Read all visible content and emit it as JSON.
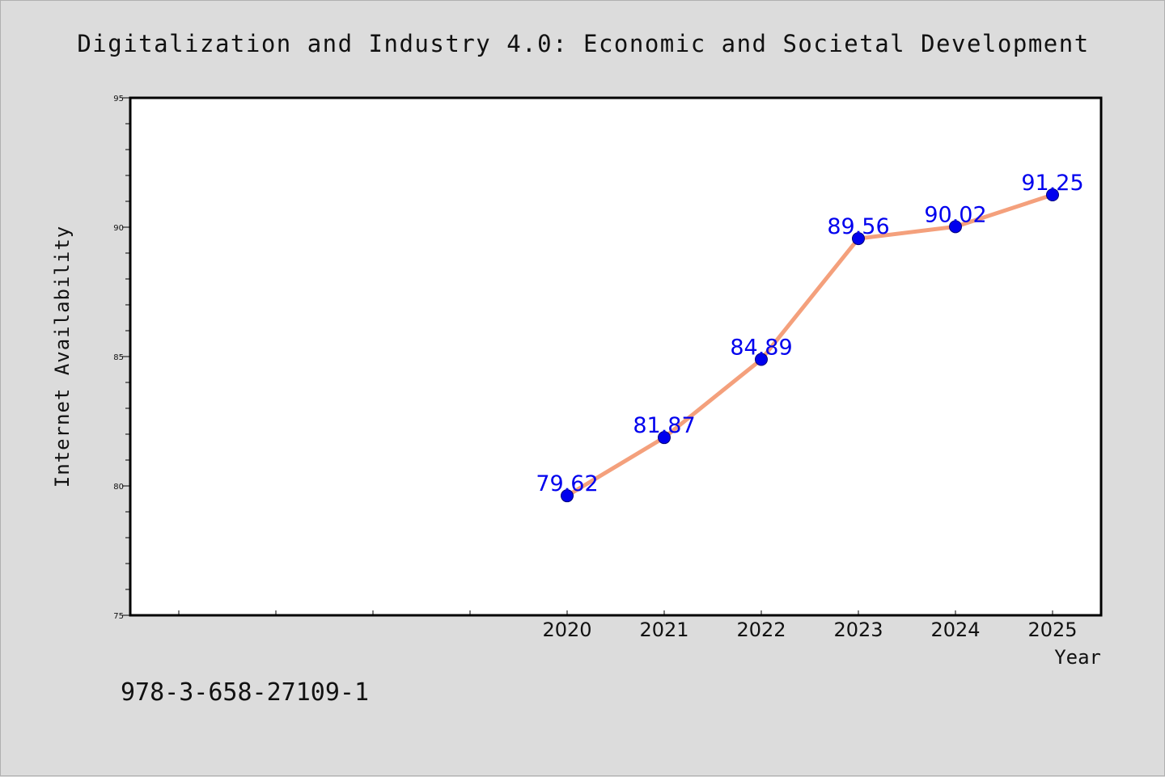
{
  "chart_data": {
    "type": "line",
    "title": "Digitalization and Industry 4.0: Economic and Societal Development",
    "xlabel": "Year",
    "ylabel": "Internet Availability",
    "x": [
      2020,
      2021,
      2022,
      2023,
      2024,
      2025
    ],
    "x_tick_labels": [
      "2020",
      "2021",
      "2022",
      "2023",
      "2024",
      "2025"
    ],
    "series": [
      {
        "values": [
          79.62,
          81.87,
          84.89,
          89.56,
          90.02,
          91.25
        ],
        "data_labels": [
          "79.62",
          "81.87",
          "84.89",
          "89.56",
          "90.02",
          "91.25"
        ],
        "line_color": "#f4a07c",
        "marker_color": "#0000ee",
        "label_color": "#0000ee"
      }
    ],
    "xlim": [
      2015.5,
      2025.5
    ],
    "ylim": [
      75,
      95
    ],
    "y_tick_labels": [
      "75",
      "80",
      "85",
      "90",
      "95"
    ],
    "grid": false,
    "legend": "none"
  },
  "footnote": "978-3-658-27109-1"
}
